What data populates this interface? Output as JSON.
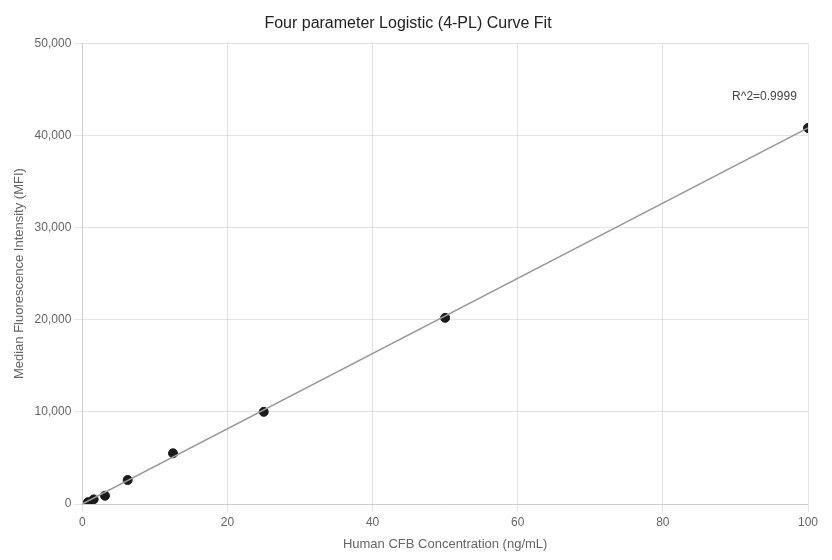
{
  "chart_data": {
    "type": "scatter",
    "title": "Four parameter Logistic (4-PL) Curve Fit",
    "x_label": "Human CFB Concentration (ng/mL)",
    "y_label": "Median Fluorescence Intensity (MFI)",
    "series": [
      {
        "type": "line",
        "color": "#999999",
        "x": [
          0.0,
          100.0
        ],
        "values": [
          0,
          40800
        ]
      },
      {
        "type": "scatter",
        "color": "#1a1a1a",
        "x": [
          0.781,
          1.563,
          3.125,
          6.25,
          12.5,
          25.0,
          50.0,
          100.0
        ],
        "values": [
          200,
          500,
          900,
          2600,
          5500,
          10000,
          20200,
          40800
        ]
      }
    ],
    "annotations": [
      {
        "text": "R^2=0.9999",
        "x": 94,
        "y": 43500
      }
    ],
    "xlim": [
      0,
      100
    ],
    "ylim": [
      0,
      50000
    ],
    "xticks": [
      0,
      20,
      40,
      60,
      80,
      100
    ],
    "yticks": [
      0,
      {
        "value": 10000,
        "label": "10,000"
      },
      {
        "value": 20000,
        "label": "20,000"
      },
      {
        "value": 30000,
        "label": "30,000"
      },
      {
        "value": 40000,
        "label": "40,000"
      },
      {
        "value": 50000,
        "label": "50,000"
      }
    ],
    "grid": true
  }
}
